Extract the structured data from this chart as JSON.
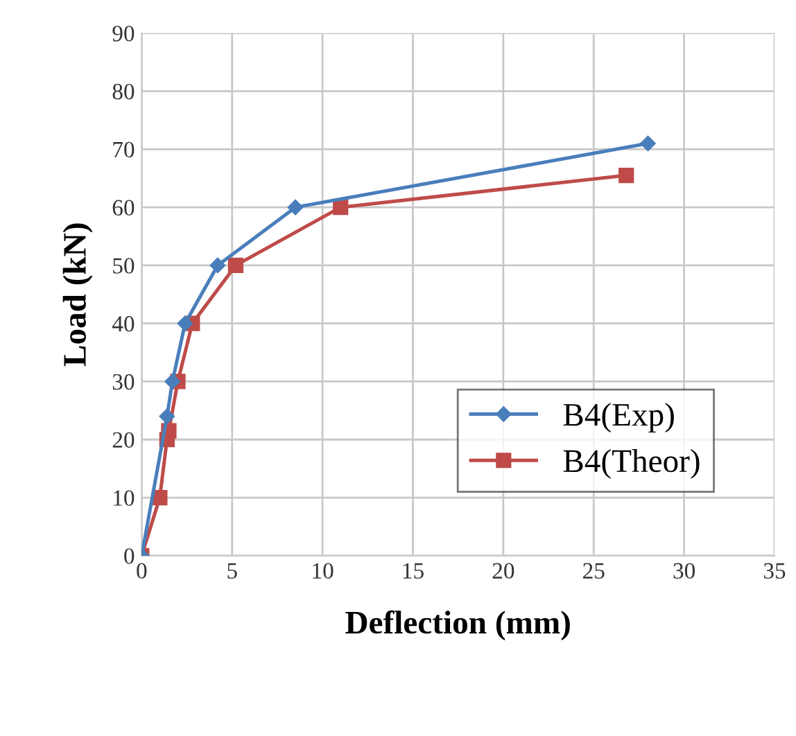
{
  "chart_data": {
    "type": "line",
    "xlabel": "Deflection (mm)",
    "ylabel": "Load (kN)",
    "xlim": [
      0,
      35
    ],
    "xticks": [
      0,
      5,
      10,
      15,
      20,
      25,
      30,
      35
    ],
    "ylim": [
      0,
      90
    ],
    "yticks": [
      0,
      10,
      20,
      30,
      40,
      50,
      60,
      70,
      80,
      90
    ],
    "grid": true,
    "legend": "bottom right",
    "series": [
      {
        "name": "B4(Exp)",
        "color": "#4a7ebb",
        "marker": "diamond",
        "x": [
          0,
          1.4,
          1.7,
          2.4,
          4.2,
          8.5,
          28
        ],
        "values": [
          0,
          24,
          30,
          40,
          50,
          60,
          71
        ]
      },
      {
        "name": "B4(Theor)",
        "color": "#be4b48",
        "marker": "square",
        "x": [
          0,
          1,
          1.4,
          1.5,
          2,
          2.8,
          5.2,
          11,
          26.8
        ],
        "values": [
          0,
          10,
          20,
          21.5,
          30,
          40,
          50,
          60,
          65.5
        ]
      }
    ]
  }
}
